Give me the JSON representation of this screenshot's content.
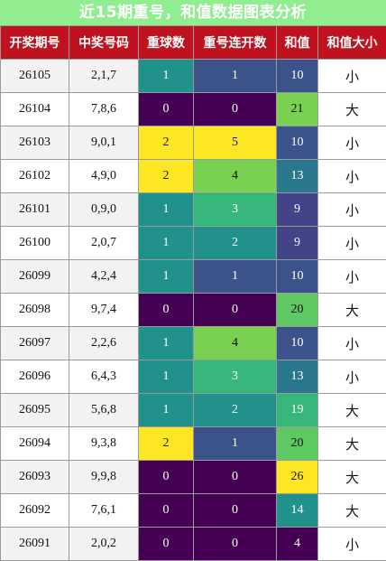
{
  "title": "近15期重号，和值数据图表分析",
  "headers": [
    "开奖期号",
    "中奖号码",
    "重球数",
    "重号连开数",
    "和值",
    "和值大小"
  ],
  "palette": {
    "v0": "#440154",
    "v1": "#21918c",
    "v2": "#fde725",
    "c0": "#440154",
    "c1": "#3b528b",
    "c2": "#21918c",
    "c3": "#35b779",
    "c4": "#7ad151",
    "c5": "#fde725"
  },
  "rows": [
    {
      "period": "26105",
      "numbers": "2,1,7",
      "repeat": "1",
      "streak": "1",
      "sum": "10",
      "size": "小",
      "sum_color": "#3b528b"
    },
    {
      "period": "26104",
      "numbers": "7,8,6",
      "repeat": "0",
      "streak": "0",
      "sum": "21",
      "size": "大",
      "sum_color": "#7ad151"
    },
    {
      "period": "26103",
      "numbers": "9,0,1",
      "repeat": "2",
      "streak": "5",
      "sum": "10",
      "size": "小",
      "sum_color": "#3b528b"
    },
    {
      "period": "26102",
      "numbers": "4,9,0",
      "repeat": "2",
      "streak": "4",
      "sum": "13",
      "size": "小",
      "sum_color": "#2a788e"
    },
    {
      "period": "26101",
      "numbers": "0,9,0",
      "repeat": "1",
      "streak": "3",
      "sum": "9",
      "size": "小",
      "sum_color": "#414487"
    },
    {
      "period": "26100",
      "numbers": "2,0,7",
      "repeat": "1",
      "streak": "2",
      "sum": "9",
      "size": "小",
      "sum_color": "#414487"
    },
    {
      "period": "26099",
      "numbers": "4,2,4",
      "repeat": "1",
      "streak": "1",
      "sum": "10",
      "size": "小",
      "sum_color": "#3b528b"
    },
    {
      "period": "26098",
      "numbers": "9,7,4",
      "repeat": "0",
      "streak": "0",
      "sum": "20",
      "size": "大",
      "sum_color": "#5ec962"
    },
    {
      "period": "26097",
      "numbers": "2,2,6",
      "repeat": "1",
      "streak": "4",
      "sum": "10",
      "size": "小",
      "sum_color": "#3b528b"
    },
    {
      "period": "26096",
      "numbers": "6,4,3",
      "repeat": "1",
      "streak": "3",
      "sum": "13",
      "size": "小",
      "sum_color": "#2a788e"
    },
    {
      "period": "26095",
      "numbers": "5,6,8",
      "repeat": "1",
      "streak": "2",
      "sum": "19",
      "size": "大",
      "sum_color": "#35b779"
    },
    {
      "period": "26094",
      "numbers": "9,3,8",
      "repeat": "2",
      "streak": "1",
      "sum": "20",
      "size": "大",
      "sum_color": "#5ec962"
    },
    {
      "period": "26093",
      "numbers": "9,9,8",
      "repeat": "0",
      "streak": "0",
      "sum": "26",
      "size": "大",
      "sum_color": "#fde725"
    },
    {
      "period": "26092",
      "numbers": "7,6,1",
      "repeat": "0",
      "streak": "0",
      "sum": "14",
      "size": "大",
      "sum_color": "#21918c"
    },
    {
      "period": "26091",
      "numbers": "2,0,2",
      "repeat": "0",
      "streak": "0",
      "sum": "4",
      "size": "小",
      "sum_color": "#440154"
    }
  ]
}
